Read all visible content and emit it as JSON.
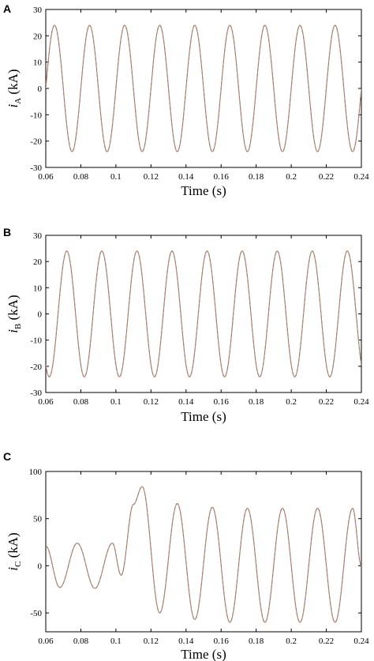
{
  "panels": [
    {
      "letter": "A",
      "ylabel_sym": "i",
      "ylabel_sub": "A",
      "ylabel_unit": " (kA)",
      "xlabel": "Time (s)"
    },
    {
      "letter": "B",
      "ylabel_sym": "i",
      "ylabel_sub": "B",
      "ylabel_unit": " (kA)",
      "xlabel": "Time (s)"
    },
    {
      "letter": "C",
      "ylabel_sym": "i",
      "ylabel_sub": "C",
      "ylabel_unit": " (kA)",
      "xlabel": "Time (s)"
    }
  ],
  "colors": {
    "series_solid": "#d08060",
    "series_dashed": "#7a8a90"
  },
  "chart_data": [
    {
      "type": "line",
      "xlabel": "Time (s)",
      "ylabel": "iA (kA)",
      "xlim": [
        0.06,
        0.24
      ],
      "ylim": [
        -30,
        30
      ],
      "x_ticks": [
        0.06,
        0.08,
        0.1,
        0.12,
        0.14,
        0.16,
        0.18,
        0.2,
        0.22,
        0.24
      ],
      "x_tick_labels": [
        "0.06",
        "0.08",
        "0.1",
        "0.12",
        "0.14",
        "0.16",
        "0.18",
        "0.2",
        "0.22",
        "0.24"
      ],
      "y_ticks": [
        -30,
        -20,
        -10,
        0,
        10,
        20,
        30
      ],
      "y_tick_labels": [
        "-30",
        "-20",
        "-10",
        "0",
        "10",
        "20",
        "30"
      ],
      "grid": false,
      "series": [
        {
          "style": "solid",
          "amplitude": 24,
          "frequency_hz": 50,
          "peak_time": 0.065,
          "x_start": 0.06,
          "x_end": 0.24
        },
        {
          "style": "dashed",
          "amplitude": 24,
          "frequency_hz": 50,
          "peak_time": 0.065,
          "x_start": 0.06,
          "x_end": 0.24
        }
      ]
    },
    {
      "type": "line",
      "xlabel": "Time (s)",
      "ylabel": "iB (kA)",
      "xlim": [
        0.06,
        0.24
      ],
      "ylim": [
        -30,
        30
      ],
      "x_ticks": [
        0.06,
        0.08,
        0.1,
        0.12,
        0.14,
        0.16,
        0.18,
        0.2,
        0.22,
        0.24
      ],
      "x_tick_labels": [
        "0.06",
        "0.08",
        "0.1",
        "0.12",
        "0.14",
        "0.16",
        "0.18",
        "0.2",
        "0.22",
        "0.24"
      ],
      "y_ticks": [
        -30,
        -20,
        -10,
        0,
        10,
        20,
        30
      ],
      "y_tick_labels": [
        "-30",
        "-20",
        "-10",
        "0",
        "10",
        "20",
        "30"
      ],
      "grid": false,
      "series": [
        {
          "style": "solid",
          "amplitude": 24,
          "frequency_hz": 50,
          "peak_time": 0.072,
          "x_start": 0.06,
          "x_end": 0.24
        },
        {
          "style": "dashed",
          "amplitude": 24,
          "frequency_hz": 50,
          "peak_time": 0.072,
          "x_start": 0.06,
          "x_end": 0.24
        }
      ]
    },
    {
      "type": "line",
      "xlabel": "Time (s)",
      "ylabel": "iC (kA)",
      "xlim": [
        0.06,
        0.24
      ],
      "ylim": [
        -70,
        100
      ],
      "x_ticks": [
        0.06,
        0.08,
        0.1,
        0.12,
        0.14,
        0.16,
        0.18,
        0.2,
        0.22,
        0.24
      ],
      "x_tick_labels": [
        "0.06",
        "0.08",
        "0.1",
        "0.12",
        "0.14",
        "0.16",
        "0.18",
        "0.2",
        "0.22",
        "0.24"
      ],
      "y_ticks": [
        -50,
        0,
        50,
        100
      ],
      "y_tick_labels": [
        "-50",
        "0",
        "50",
        "100"
      ],
      "grid": false,
      "series": [
        {
          "style": "solid",
          "x": [
            0.06,
            0.068,
            0.078,
            0.088,
            0.098,
            0.103,
            0.11,
            0.115,
            0.125,
            0.135,
            0.145,
            0.155,
            0.165,
            0.175,
            0.185,
            0.195,
            0.205,
            0.215,
            0.225,
            0.235,
            0.24
          ],
          "y": [
            21,
            -23,
            24,
            -24,
            24,
            -10,
            65,
            84,
            -50,
            66,
            -57,
            62,
            -60,
            61,
            -60,
            61,
            -60,
            61,
            -60,
            61,
            0
          ]
        },
        {
          "style": "dashed",
          "x": [
            0.06,
            0.068,
            0.078,
            0.088,
            0.098,
            0.103,
            0.11,
            0.115,
            0.125,
            0.135,
            0.145,
            0.155,
            0.165,
            0.175,
            0.185,
            0.195,
            0.205,
            0.215,
            0.225,
            0.235,
            0.24
          ],
          "y": [
            21,
            -23,
            24,
            -24,
            24,
            -10,
            65,
            84,
            -50,
            66,
            -57,
            62,
            -60,
            61,
            -60,
            61,
            -60,
            61,
            -60,
            61,
            0
          ]
        }
      ]
    }
  ]
}
